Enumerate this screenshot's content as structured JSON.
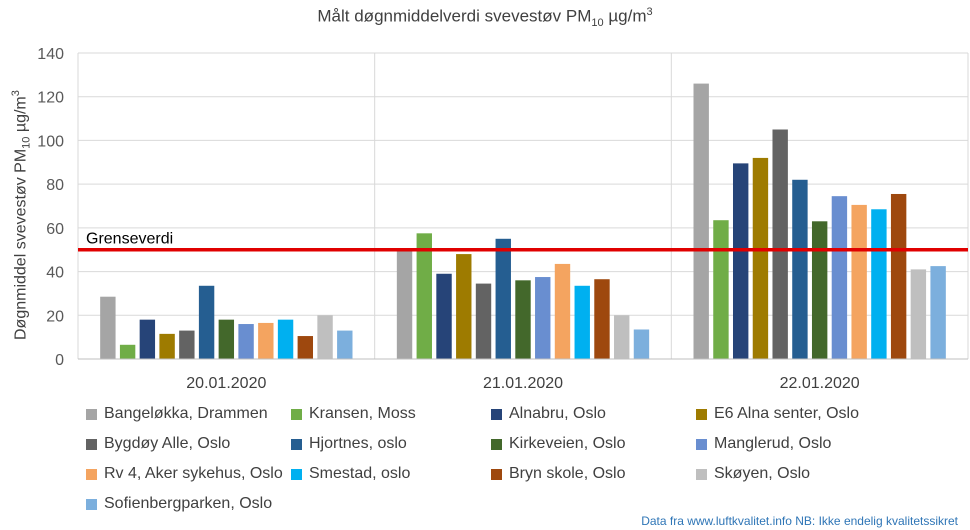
{
  "chart_data": {
    "type": "bar",
    "title": "Målt døgnmiddelverdi svevestøv PM",
    "title_sub": "10",
    "title_unit": " µg/m",
    "title_sup": "3",
    "ylabel": "Døgnmiddel svevestøv PM",
    "ylabel_sub": "10",
    "ylabel_unit": " µg/m",
    "ylabel_sup": "3",
    "ylim": [
      0,
      140
    ],
    "yticks": [
      0,
      20,
      40,
      60,
      80,
      100,
      120,
      140
    ],
    "grid": true,
    "categories": [
      "20.01.2020",
      "21.01.2020",
      "22.01.2020"
    ],
    "series": [
      {
        "name": "Bangeløkka, Drammen",
        "color": "#a5a5a5",
        "values": [
          28.5,
          50.5,
          126
        ]
      },
      {
        "name": "Kransen, Moss",
        "color": "#70ad47",
        "values": [
          6.5,
          57.5,
          63.5
        ]
      },
      {
        "name": "Alnabru, Oslo",
        "color": "#264478",
        "values": [
          18,
          39,
          89.5
        ]
      },
      {
        "name": "E6 Alna senter, Oslo",
        "color": "#9e7b00",
        "values": [
          11.5,
          48,
          92
        ]
      },
      {
        "name": "Bygdøy Alle, Oslo",
        "color": "#636363",
        "values": [
          13,
          34.5,
          105
        ]
      },
      {
        "name": "Hjortnes, oslo",
        "color": "#255e91",
        "values": [
          33.5,
          55,
          82
        ]
      },
      {
        "name": "Kirkeveien, Oslo",
        "color": "#43682b",
        "values": [
          18,
          36,
          63
        ]
      },
      {
        "name": "Manglerud, Oslo",
        "color": "#698ed0",
        "values": [
          16,
          37.5,
          74.5
        ]
      },
      {
        "name": "Rv 4, Aker sykehus, Oslo",
        "color": "#f4a460",
        "values": [
          16.5,
          43.5,
          70.5
        ]
      },
      {
        "name": "Smestad, oslo",
        "color": "#00b0f0",
        "values": [
          18,
          33.5,
          68.5
        ]
      },
      {
        "name": "Bryn skole, Oslo",
        "color": "#9e480e",
        "values": [
          10.5,
          36.5,
          75.5
        ]
      },
      {
        "name": "Skøyen, Oslo",
        "color": "#bfbfbf",
        "values": [
          20,
          20,
          41
        ]
      },
      {
        "name": "Sofienbergparken, Oslo",
        "color": "#7cafdd",
        "values": [
          13,
          13.5,
          42.5
        ]
      }
    ],
    "reference_line": {
      "label": "Grenseverdi",
      "value": 50,
      "color": "#e00000"
    },
    "legend_position": "bottom"
  },
  "source_note": "Data fra www.luftkvalitet.info NB: Ikke endelig kvalitetssikret"
}
